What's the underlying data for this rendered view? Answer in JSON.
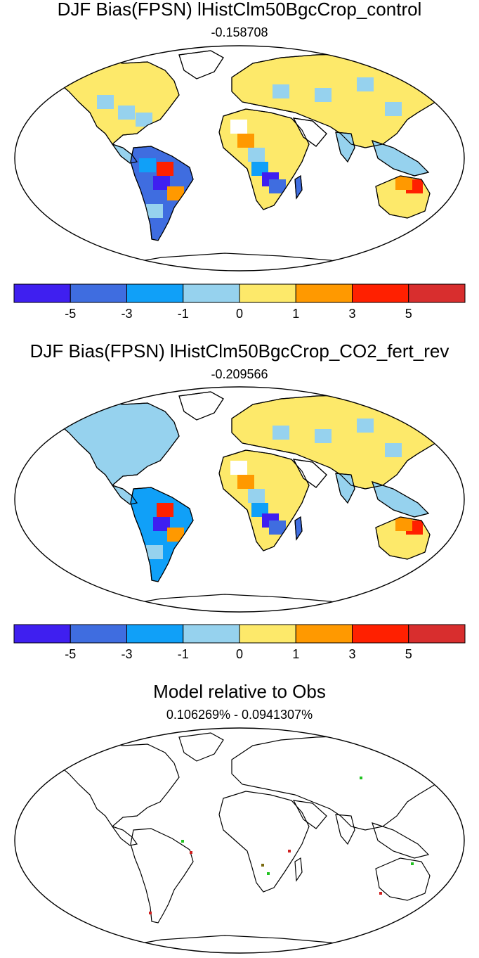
{
  "panels": [
    {
      "title": "DJF Bias(FPSN) lHistClm50BgcCrop_control",
      "subtitle": "-0.158708"
    },
    {
      "title": "DJF Bias(FPSN) lHistClm50BgcCrop_CO2_fert_rev",
      "subtitle": "-0.209566"
    },
    {
      "title": "Model relative to Obs",
      "subtitle": "0.106269% - 0.0941307%"
    }
  ],
  "colorbar": {
    "colors": [
      "#3f1ff0",
      "#3f6de0",
      "#10a0f8",
      "#96d2ee",
      "#fde96a",
      "#ff9900",
      "#ff2000",
      "#d82e2e"
    ],
    "labels": [
      "-5",
      "-3",
      "-1",
      "0",
      "1",
      "3",
      "5"
    ]
  },
  "colors": {
    "land_default": "#96d2ee",
    "positive_small": "#fde96a",
    "missing": "#ffffff",
    "coast": "#000000"
  }
}
